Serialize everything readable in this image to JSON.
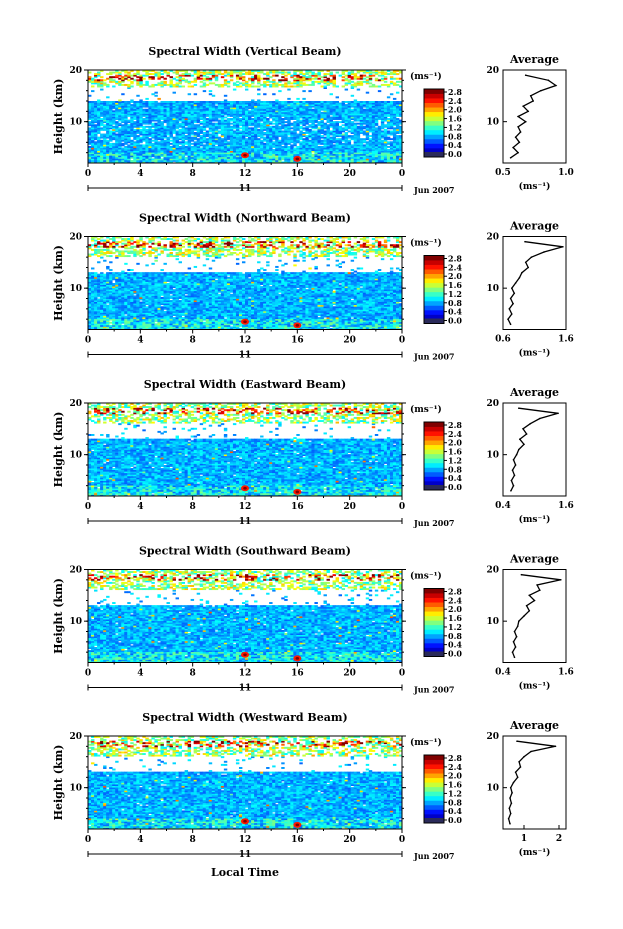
{
  "figure": {
    "xlabel": "Local Time",
    "date_label": "Jun 2007",
    "day_label": "11",
    "colorbar_unit": "(ms⁻¹)",
    "colorbar_ticks": [
      "2.8",
      "2.4",
      "2.0",
      "1.6",
      "1.2",
      "0.8",
      "0.4",
      "0.0"
    ],
    "avg_title": "Average",
    "avg_unit": "(ms⁻¹)"
  },
  "chart_data": [
    {
      "type": "heatmap",
      "title": "Spectral Width (Vertical Beam)",
      "ylabel": "Height (km)",
      "xlabel": "Local Time",
      "xticks": [
        "0",
        "4",
        "8",
        "12",
        "16",
        "20",
        "0"
      ],
      "yticks": [
        "20",
        "10"
      ],
      "xlim": [
        0,
        24
      ],
      "ylim": [
        2,
        20
      ],
      "colorbar": {
        "min": 0.0,
        "max": 3.0,
        "unit": "ms-1"
      },
      "average_profile": {
        "xticks": [
          "0.5",
          "1.0"
        ],
        "xlim": [
          0.5,
          1.0
        ],
        "heights": [
          3,
          4,
          5,
          6,
          7,
          8,
          9,
          10,
          11,
          12,
          13,
          14,
          15,
          16,
          17,
          18,
          19
        ],
        "values": [
          0.56,
          0.62,
          0.58,
          0.63,
          0.6,
          0.64,
          0.62,
          0.68,
          0.62,
          0.7,
          0.66,
          0.74,
          0.72,
          0.8,
          0.92,
          0.86,
          0.68
        ]
      }
    },
    {
      "type": "heatmap",
      "title": "Spectral Width (Northward Beam)",
      "ylabel": "Height (km)",
      "xlabel": "Local Time",
      "xticks": [
        "0",
        "4",
        "8",
        "12",
        "16",
        "20",
        "0"
      ],
      "yticks": [
        "20",
        "10"
      ],
      "xlim": [
        0,
        24
      ],
      "ylim": [
        2,
        20
      ],
      "colorbar": {
        "min": 0.0,
        "max": 3.0,
        "unit": "ms-1"
      },
      "average_profile": {
        "xticks": [
          "0.6",
          "1.6"
        ],
        "xlim": [
          0.6,
          1.6
        ],
        "heights": [
          3,
          4,
          5,
          6,
          7,
          8,
          9,
          10,
          11,
          12,
          13,
          14,
          15,
          16,
          17,
          18,
          19
        ],
        "values": [
          0.72,
          0.68,
          0.74,
          0.7,
          0.76,
          0.72,
          0.78,
          0.74,
          0.8,
          0.86,
          0.9,
          1.0,
          0.96,
          1.05,
          1.25,
          1.55,
          0.95
        ]
      }
    },
    {
      "type": "heatmap",
      "title": "Spectral Width (Eastward Beam)",
      "ylabel": "Height (km)",
      "xlabel": "Local Time",
      "xticks": [
        "0",
        "4",
        "8",
        "12",
        "16",
        "20",
        "0"
      ],
      "yticks": [
        "20",
        "10"
      ],
      "xlim": [
        0,
        24
      ],
      "ylim": [
        2,
        20
      ],
      "colorbar": {
        "min": 0.0,
        "max": 3.0,
        "unit": "ms-1"
      },
      "average_profile": {
        "xticks": [
          "0.4",
          "1.6"
        ],
        "xlim": [
          0.4,
          1.6
        ],
        "heights": [
          3,
          4,
          5,
          6,
          7,
          8,
          9,
          10,
          11,
          12,
          13,
          14,
          15,
          16,
          17,
          18,
          19
        ],
        "values": [
          0.55,
          0.6,
          0.56,
          0.62,
          0.58,
          0.64,
          0.6,
          0.66,
          0.7,
          0.8,
          0.72,
          0.85,
          0.78,
          0.92,
          1.1,
          1.45,
          0.7
        ]
      }
    },
    {
      "type": "heatmap",
      "title": "Spectral Width (Southward Beam)",
      "ylabel": "Height (km)",
      "xlabel": "Local Time",
      "xticks": [
        "0",
        "4",
        "8",
        "12",
        "16",
        "20",
        "0"
      ],
      "yticks": [
        "20",
        "10"
      ],
      "xlim": [
        0,
        24
      ],
      "ylim": [
        2,
        20
      ],
      "colorbar": {
        "min": 0.0,
        "max": 3.0,
        "unit": "ms-1"
      },
      "average_profile": {
        "xticks": [
          "0.4",
          "1.6"
        ],
        "xlim": [
          0.4,
          1.6
        ],
        "heights": [
          3,
          4,
          5,
          6,
          7,
          8,
          9,
          10,
          11,
          12,
          13,
          14,
          15,
          16,
          17,
          18,
          19
        ],
        "values": [
          0.62,
          0.58,
          0.64,
          0.6,
          0.66,
          0.62,
          0.68,
          0.7,
          0.8,
          0.9,
          0.85,
          1.0,
          0.9,
          1.1,
          1.05,
          1.5,
          0.75
        ]
      }
    },
    {
      "type": "heatmap",
      "title": "Spectral Width (Westward Beam)",
      "ylabel": "Height (km)",
      "xlabel": "Local Time",
      "xticks": [
        "0",
        "4",
        "8",
        "12",
        "16",
        "20",
        "0"
      ],
      "yticks": [
        "20",
        "10"
      ],
      "xlim": [
        0,
        24
      ],
      "ylim": [
        2,
        20
      ],
      "colorbar": {
        "min": 0.0,
        "max": 3.0,
        "unit": "ms-1"
      },
      "average_profile": {
        "xticks": [
          "1",
          "2"
        ],
        "xlim": [
          0.4,
          2.2
        ],
        "heights": [
          3,
          4,
          5,
          6,
          7,
          8,
          9,
          10,
          11,
          12,
          13,
          14,
          15,
          16,
          17,
          18,
          19
        ],
        "values": [
          0.6,
          0.56,
          0.62,
          0.58,
          0.64,
          0.6,
          0.66,
          0.62,
          0.7,
          0.82,
          0.76,
          0.9,
          0.86,
          1.0,
          1.2,
          1.9,
          0.8
        ]
      }
    }
  ]
}
